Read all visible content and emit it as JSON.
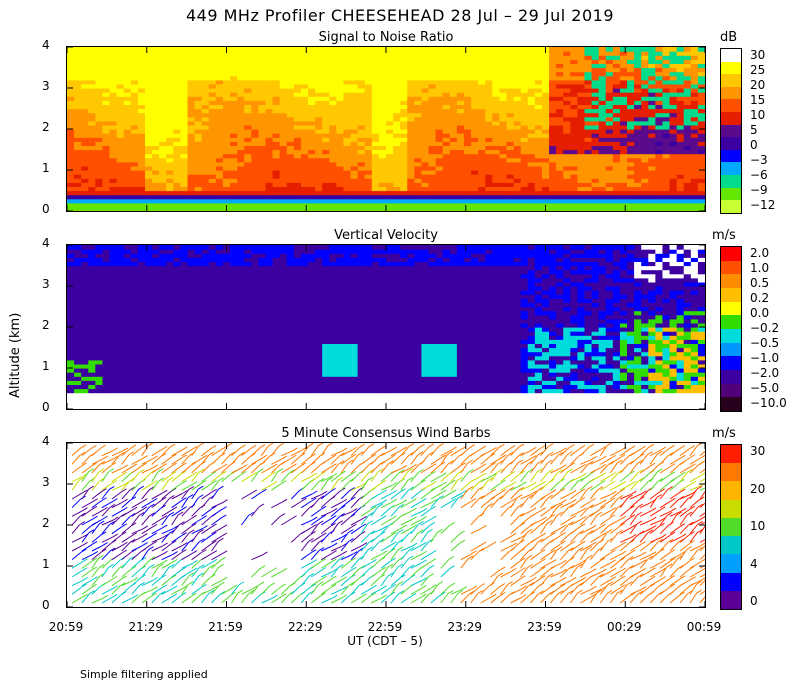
{
  "title": "449 MHz Profiler CHEESEHEAD 28 Jul – 29 Jul 2019",
  "y_axis_label": "Altitude (km)",
  "x_axis_label": "UT  (CDT – 5)",
  "footnote": "Simple filtering applied",
  "chart_data": [
    {
      "type": "heatmap",
      "title": "Signal to Noise Ratio",
      "unit": "dB",
      "ylim": [
        0,
        4
      ],
      "yticks": [
        "0",
        "1",
        "2",
        "3",
        "4"
      ],
      "xticks": [
        "20:59",
        "21:29",
        "21:59",
        "22:29",
        "22:59",
        "23:29",
        "23:59",
        "00:29",
        "00:59"
      ],
      "colorbar": {
        "labels": [
          "30",
          "25",
          "20",
          "15",
          "10",
          "5",
          "0",
          "−3",
          "−6",
          "−9",
          "−12"
        ],
        "colors": [
          "#ffffff",
          "#ffff00",
          "#ffc800",
          "#ff9600",
          "#ff5000",
          "#e61e00",
          "#5a0a8c",
          "#3c00a0",
          "#0000ff",
          "#00aaff",
          "#00dc8c",
          "#64e600",
          "#c8ff32"
        ]
      }
    },
    {
      "type": "heatmap",
      "title": "Vertical Velocity",
      "unit": "m/s",
      "ylim": [
        0,
        4
      ],
      "yticks": [
        "0",
        "1",
        "2",
        "3",
        "4"
      ],
      "xticks": [
        "20:59",
        "21:29",
        "21:59",
        "22:29",
        "22:59",
        "23:29",
        "23:59",
        "00:29",
        "00:59"
      ],
      "colorbar": {
        "labels": [
          "2.0",
          "1.0",
          "0.5",
          "0.2",
          "0.0",
          "−0.2",
          "−0.5",
          "−1.0",
          "−2.0",
          "−5.0",
          "−10.0"
        ],
        "colors": [
          "#ff0000",
          "#ff5000",
          "#ff8c00",
          "#ffbe00",
          "#ffff00",
          "#32dc00",
          "#00dcdc",
          "#0096ff",
          "#0000ff",
          "#3c00a0",
          "#500078",
          "#28001e"
        ]
      }
    },
    {
      "type": "scatter",
      "title": "5 Minute Consensus Wind Barbs",
      "unit": "m/s",
      "ylim": [
        0,
        4
      ],
      "yticks": [
        "0",
        "1",
        "2",
        "3",
        "4"
      ],
      "xticks": [
        "20:59",
        "21:29",
        "21:59",
        "22:29",
        "22:59",
        "23:29",
        "23:59",
        "00:29",
        "00:59"
      ],
      "colorbar": {
        "labels": [
          "30",
          "20",
          "10",
          "4",
          "0"
        ],
        "colors": [
          "#ff1e00",
          "#ff7800",
          "#ffb400",
          "#c8dc00",
          "#50dc28",
          "#00c8c8",
          "#00a0ff",
          "#0000ff",
          "#5a0096"
        ]
      }
    }
  ]
}
